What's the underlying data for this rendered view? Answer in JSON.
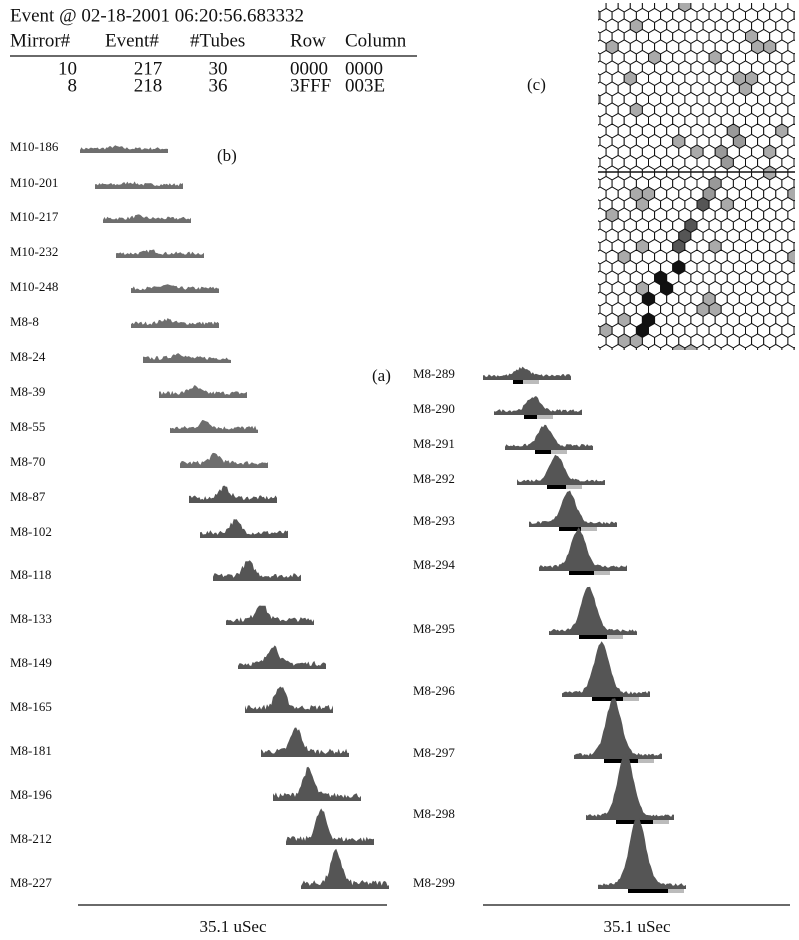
{
  "header": {
    "title": "Event @ 02-18-2001 06:20:56.683332"
  },
  "table": {
    "columns": [
      "Mirror#",
      "Event#",
      "#Tubes",
      "Row",
      "Column"
    ],
    "rows": [
      [
        "10",
        "217",
        "30",
        "0000",
        "0000"
      ],
      [
        "8",
        "218",
        "36",
        "3FFF",
        "003E"
      ]
    ]
  },
  "panel_labels": {
    "a": "(a)",
    "b": "(b)",
    "c": "(c)"
  },
  "left_traces": [
    "M10-186",
    "M10-201",
    "M10-217",
    "M10-232",
    "M10-248",
    "M8-8",
    "M8-24",
    "M8-39",
    "M8-55",
    "M8-70",
    "M8-87",
    "M8-102",
    "M8-118",
    "M8-133",
    "M8-149",
    "M8-165",
    "M8-181",
    "M8-196",
    "M8-212",
    "M8-227"
  ],
  "right_traces": [
    "M8-289",
    "M8-290",
    "M8-291",
    "M8-292",
    "M8-293",
    "M8-294",
    "M8-295",
    "M8-296",
    "M8-297",
    "M8-298",
    "M8-299"
  ],
  "left_scale": "35.1 uSec",
  "right_scale": "35.1 uSec"
}
